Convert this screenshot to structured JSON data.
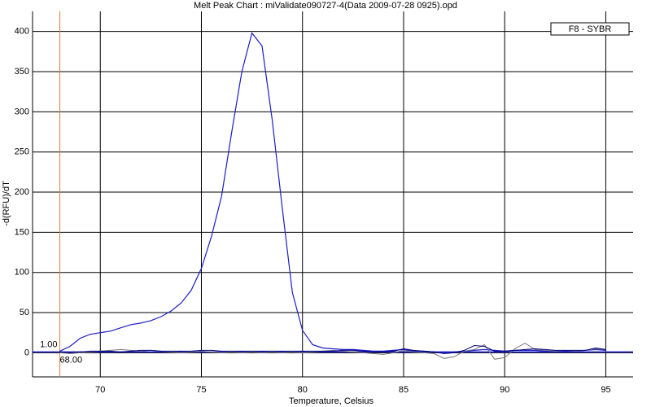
{
  "chart_data": {
    "type": "line",
    "title": "Melt Peak Chart : miValidate090727-4(Data 2009-07-28 0925).opd",
    "x_label": "Temperature, Celsius",
    "y_label": "-d(RFU)/dT",
    "x": [
      68,
      68.5,
      69,
      69.5,
      70,
      70.5,
      71,
      71.5,
      72,
      72.5,
      73,
      73.5,
      74,
      74.5,
      75,
      75.5,
      76,
      76.5,
      77,
      77.5,
      78,
      78.5,
      79,
      79.5,
      80,
      80.5,
      81,
      81.5,
      82,
      82.5,
      83,
      83.5,
      84,
      84.5,
      85,
      85.5,
      86,
      86.5,
      87,
      87.5,
      88,
      88.5,
      89,
      89.5,
      90,
      90.5,
      91,
      91.5,
      92,
      92.5,
      93,
      93.5,
      94,
      94.5,
      95
    ],
    "series": [
      {
        "name": "F8 - SYBR",
        "color": "#1c1cc8",
        "values": [
          2,
          8,
          18,
          23,
          25,
          27,
          31,
          35,
          37,
          40,
          45,
          52,
          62,
          78,
          105,
          145,
          195,
          275,
          350,
          398,
          382,
          290,
          180,
          75,
          28,
          10,
          6,
          5,
          4,
          4,
          3,
          2,
          2,
          3,
          4,
          2,
          2,
          1,
          0,
          1,
          2,
          3,
          4,
          3,
          2,
          3,
          3,
          3,
          2,
          2,
          2,
          2,
          3,
          4,
          3
        ]
      },
      {
        "color": "#7a7a7a",
        "values": [
          0,
          -1,
          0,
          1,
          2,
          3,
          4,
          3,
          2,
          3,
          2,
          1,
          0,
          1,
          2,
          1,
          0,
          1,
          0,
          1,
          0,
          1,
          0,
          1,
          0,
          1,
          2,
          3,
          2,
          1,
          0,
          -1,
          -2,
          0,
          3,
          1,
          0,
          -1,
          -7,
          -5,
          2,
          4,
          10,
          -8,
          -6,
          5,
          12,
          4,
          3,
          2,
          3,
          2,
          3,
          5,
          4
        ]
      },
      {
        "color": "#00007a",
        "values": [
          1,
          0,
          1,
          2,
          2,
          2,
          1,
          2,
          3,
          3,
          2,
          2,
          2,
          2,
          3,
          3,
          2,
          2,
          2,
          2,
          2,
          2,
          2,
          2,
          2,
          2,
          2,
          2,
          3,
          3,
          2,
          1,
          1,
          2,
          5,
          3,
          2,
          1,
          -1,
          0,
          3,
          9,
          8,
          2,
          2,
          3,
          4,
          5,
          4,
          3,
          3,
          3,
          3,
          6,
          4
        ]
      }
    ],
    "xlim": [
      66.65,
      96.35
    ],
    "ylim": [
      -30,
      425
    ],
    "xticks": [
      70,
      75,
      80,
      85,
      90,
      95
    ],
    "yticks": [
      0,
      50,
      100,
      150,
      200,
      250,
      300,
      350,
      400
    ],
    "grid": true,
    "legend": "top-right",
    "cursor": {
      "x": {
        "value": 68,
        "label": "68.00"
      },
      "y": {
        "value": 1,
        "label": "1.00"
      },
      "color": "#e07838"
    }
  }
}
